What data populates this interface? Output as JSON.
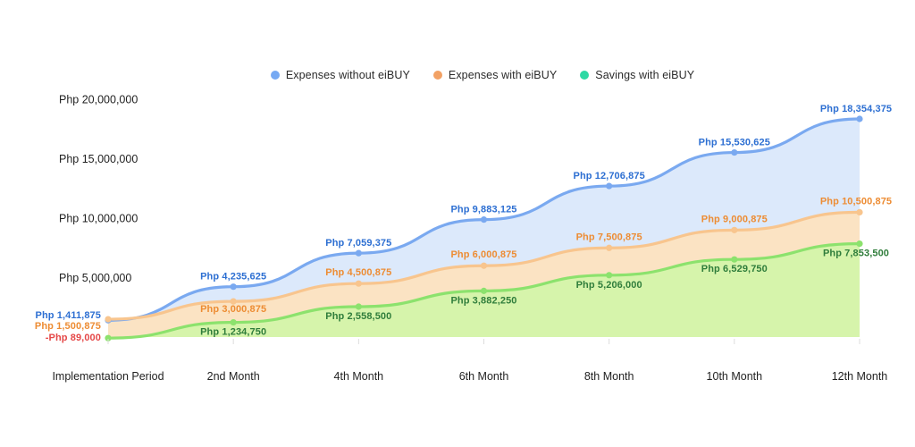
{
  "legend": [
    {
      "label": "Expenses without eiBUY",
      "color": "#76a9f3"
    },
    {
      "label": "Expenses with eiBUY",
      "color": "#f2a164"
    },
    {
      "label": "Savings with eiBUY",
      "color": "#2ed9a4"
    }
  ],
  "chart_data": {
    "type": "area",
    "title": "",
    "xlabel": "",
    "ylabel": "",
    "grid": false,
    "legend_position": "top",
    "currency_prefix": "Php",
    "categories": [
      "Implementation Period",
      "2nd Month",
      "4th Month",
      "6th Month",
      "8th Month",
      "10th Month",
      "12th Month"
    ],
    "y_ticks": [
      {
        "value": 20000000,
        "label": "Php 20,000,000"
      },
      {
        "value": 15000000,
        "label": "Php 15,000,000"
      },
      {
        "value": 10000000,
        "label": "Php 10,000,000"
      },
      {
        "value": 5000000,
        "label": "Php 5,000,000"
      }
    ],
    "ylim": [
      0,
      20000000
    ],
    "series": [
      {
        "name": "Expenses without eiBUY",
        "line_color": "#7aa9f0",
        "fill_color": "#dce9fb",
        "label_color": "#2d6fd2",
        "values": [
          1411875,
          4235625,
          7059375,
          9883125,
          12706875,
          15530625,
          18354375
        ],
        "labels": [
          "Php 1,411,875",
          "Php 4,235,625",
          "Php 7,059,375",
          "Php 9,883,125",
          "Php 12,706,875",
          "Php 15,530,625",
          "Php 18,354,375"
        ]
      },
      {
        "name": "Expenses with eiBUY",
        "line_color": "#f8c58e",
        "fill_color": "#fbe3c3",
        "label_color": "#ed8c33",
        "values": [
          1500875,
          3000875,
          4500875,
          6000875,
          7500875,
          9000875,
          10500875
        ],
        "labels": [
          "Php 1,500,875",
          "Php 3,000,875",
          "Php 4,500,875",
          "Php 6,000,875",
          "Php 7,500,875",
          "Php 9,000,875",
          "Php 10,500,875"
        ]
      },
      {
        "name": "Savings with eiBUY",
        "line_color": "#8ce26d",
        "fill_color": "#d6f4ab",
        "label_color": "#2f7d3b",
        "negative_label_color": "#e54848",
        "values": [
          -89000,
          1234750,
          2558500,
          3882250,
          5206000,
          6529750,
          7853500
        ],
        "labels": [
          "-Php 89,000",
          "Php 1,234,750",
          "Php 2,558,500",
          "Php 3,882,250",
          "Php 5,206,000",
          "Php 6,529,750",
          "Php 7,853,500"
        ]
      }
    ]
  }
}
